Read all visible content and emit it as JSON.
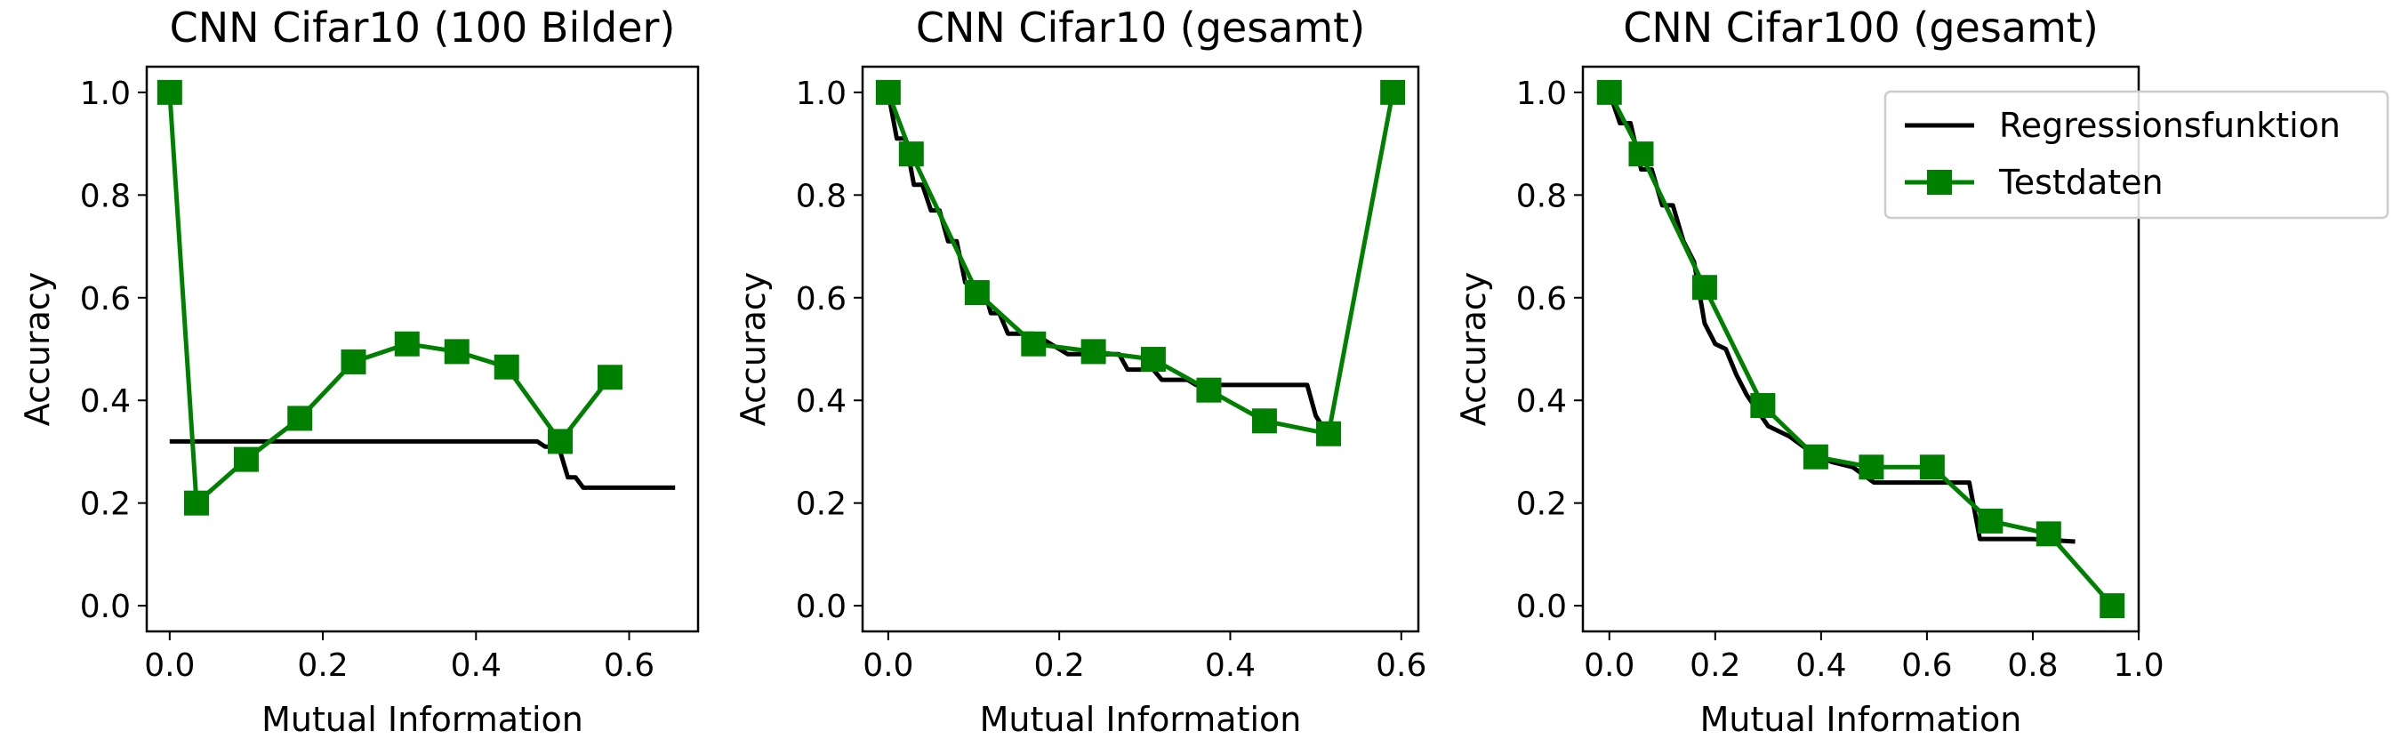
{
  "chart_data": [
    {
      "type": "line",
      "title": "CNN Cifar10 (100 Bilder)",
      "xlabel": "Mutual Information",
      "ylabel": "Accuracy",
      "xlim": [
        -0.03,
        0.69
      ],
      "ylim": [
        -0.05,
        1.05
      ],
      "xticks": [
        "0.0",
        "0.2",
        "0.4",
        "0.6"
      ],
      "yticks": [
        "0.0",
        "0.2",
        "0.4",
        "0.6",
        "0.8",
        "1.0"
      ],
      "series": [
        {
          "name": "Regressionsfunktion",
          "color": "#000000",
          "marker": "none",
          "x": [
            0.0,
            0.48,
            0.49,
            0.5,
            0.51,
            0.52,
            0.53,
            0.54,
            0.66
          ],
          "y": [
            0.32,
            0.32,
            0.31,
            0.31,
            0.3,
            0.25,
            0.25,
            0.23,
            0.23
          ]
        },
        {
          "name": "Testdaten",
          "color": "#008000",
          "marker": "square",
          "x": [
            0.0,
            0.035,
            0.1,
            0.17,
            0.24,
            0.31,
            0.375,
            0.44,
            0.51,
            0.575
          ],
          "y": [
            1.0,
            0.2,
            0.285,
            0.365,
            0.475,
            0.51,
            0.495,
            0.465,
            0.32,
            0.445
          ]
        }
      ]
    },
    {
      "type": "line",
      "title": "CNN Cifar10 (gesamt)",
      "xlabel": "Mutual Information",
      "ylabel": "Accuracy",
      "xlim": [
        -0.03,
        0.62
      ],
      "ylim": [
        -0.05,
        1.05
      ],
      "xticks": [
        "0.0",
        "0.2",
        "0.4",
        "0.6"
      ],
      "yticks": [
        "0.0",
        "0.2",
        "0.4",
        "0.6",
        "0.8",
        "1.0"
      ],
      "series": [
        {
          "name": "Regressionsfunktion",
          "color": "#000000",
          "marker": "none",
          "x": [
            0.0,
            0.01,
            0.02,
            0.03,
            0.04,
            0.05,
            0.06,
            0.07,
            0.08,
            0.09,
            0.1,
            0.11,
            0.12,
            0.13,
            0.14,
            0.15,
            0.17,
            0.2,
            0.21,
            0.24,
            0.27,
            0.28,
            0.31,
            0.32,
            0.35,
            0.36,
            0.4,
            0.49,
            0.5,
            0.515
          ],
          "y": [
            1.0,
            0.91,
            0.91,
            0.82,
            0.82,
            0.77,
            0.77,
            0.71,
            0.71,
            0.63,
            0.63,
            0.63,
            0.57,
            0.57,
            0.53,
            0.53,
            0.53,
            0.5,
            0.49,
            0.49,
            0.49,
            0.46,
            0.46,
            0.44,
            0.44,
            0.43,
            0.43,
            0.43,
            0.37,
            0.33
          ]
        },
        {
          "name": "Testdaten",
          "color": "#008000",
          "marker": "square",
          "x": [
            0.0,
            0.027,
            0.104,
            0.17,
            0.24,
            0.31,
            0.375,
            0.44,
            0.515,
            0.59
          ],
          "y": [
            1.0,
            0.88,
            0.61,
            0.51,
            0.495,
            0.48,
            0.42,
            0.36,
            0.335,
            1.0
          ]
        }
      ]
    },
    {
      "type": "line",
      "title": "CNN Cifar100 (gesamt)",
      "xlabel": "Mutual Information",
      "ylabel": "Accuracy",
      "xlim": [
        -0.05,
        1.0
      ],
      "ylim": [
        -0.05,
        1.05
      ],
      "xticks": [
        "0.0",
        "0.2",
        "0.4",
        "0.6",
        "0.8",
        "1.0"
      ],
      "yticks": [
        "0.0",
        "0.2",
        "0.4",
        "0.6",
        "0.8",
        "1.0"
      ],
      "legend": {
        "location": "upper right",
        "entries": [
          "Regressionsfunktion",
          "Testdaten"
        ]
      },
      "series": [
        {
          "name": "Regressionsfunktion",
          "color": "#000000",
          "marker": "none",
          "x": [
            0.0,
            0.02,
            0.04,
            0.06,
            0.08,
            0.1,
            0.12,
            0.14,
            0.16,
            0.18,
            0.2,
            0.22,
            0.24,
            0.26,
            0.28,
            0.3,
            0.34,
            0.38,
            0.42,
            0.46,
            0.5,
            0.6,
            0.68,
            0.7,
            0.75,
            0.8,
            0.88
          ],
          "y": [
            1.0,
            0.94,
            0.94,
            0.85,
            0.85,
            0.78,
            0.78,
            0.71,
            0.67,
            0.55,
            0.51,
            0.5,
            0.45,
            0.41,
            0.38,
            0.35,
            0.33,
            0.3,
            0.28,
            0.27,
            0.24,
            0.24,
            0.24,
            0.13,
            0.13,
            0.13,
            0.125
          ]
        },
        {
          "name": "Testdaten",
          "color": "#008000",
          "marker": "square",
          "x": [
            0.0,
            0.06,
            0.18,
            0.29,
            0.39,
            0.495,
            0.61,
            0.72,
            0.83,
            0.95
          ],
          "y": [
            1.0,
            0.88,
            0.62,
            0.39,
            0.29,
            0.27,
            0.27,
            0.165,
            0.14,
            0.0
          ]
        }
      ]
    }
  ]
}
